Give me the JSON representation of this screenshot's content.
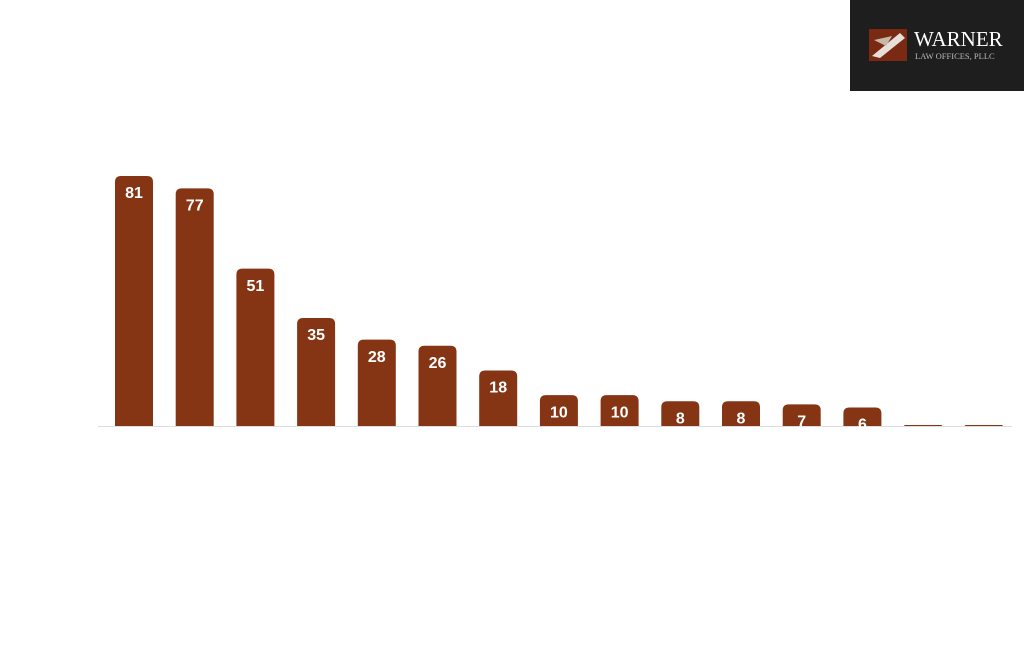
{
  "logo": {
    "name": "WARNER",
    "subtitle": "LAW OFFICES, PLLC"
  },
  "chart_data": {
    "type": "bar",
    "categories": [
      null,
      null,
      null,
      null,
      null,
      null,
      null,
      null,
      null,
      null,
      null,
      null,
      null,
      null,
      null
    ],
    "values": [
      81,
      77,
      51,
      35,
      28,
      26,
      18,
      10,
      10,
      8,
      8,
      7,
      6,
      0,
      0
    ],
    "color": "#863514"
  }
}
